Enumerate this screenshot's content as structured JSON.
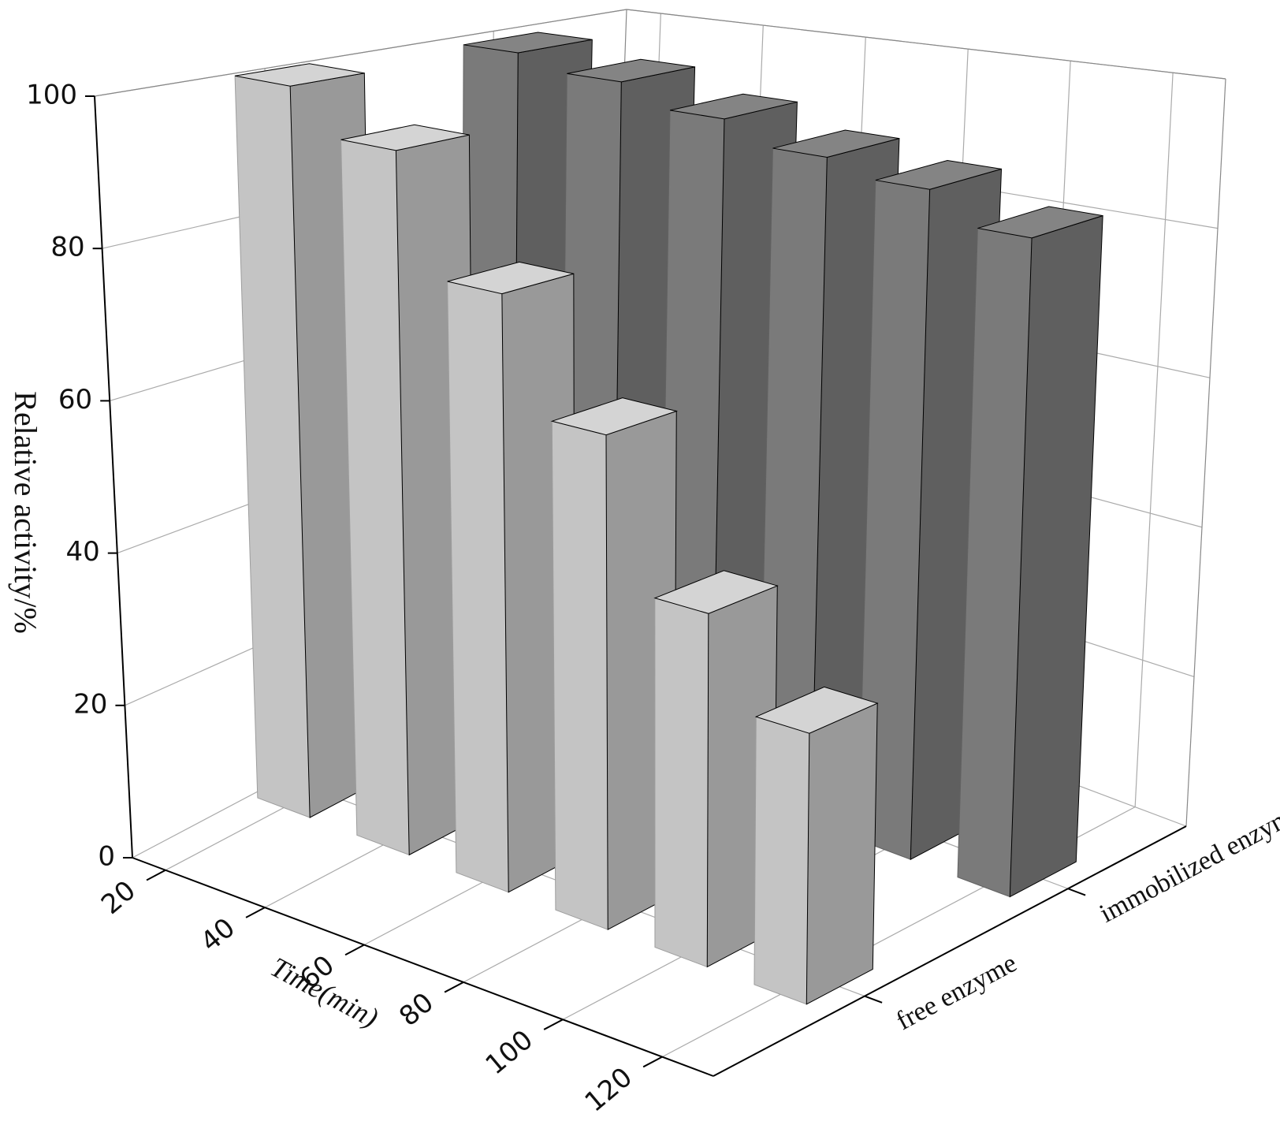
{
  "chart_data": {
    "type": "bar3d",
    "ylabel": "Relative activity/%",
    "xlabel": "Time(min)",
    "categories": [
      "20",
      "40",
      "60",
      "80",
      "100",
      "120"
    ],
    "series": [
      {
        "name": "free enzyme",
        "color": "#c4c4c4",
        "values": [
          100,
          94,
          78,
          63,
          44,
          33
        ]
      },
      {
        "name": "immobilized enzyme",
        "color": "#7a7a7a",
        "values": [
          99,
          97,
          94,
          91,
          89,
          85
        ]
      }
    ],
    "ylim": [
      0,
      100
    ],
    "yticks": [
      0,
      20,
      40,
      60,
      80,
      100
    ],
    "grid": true
  }
}
